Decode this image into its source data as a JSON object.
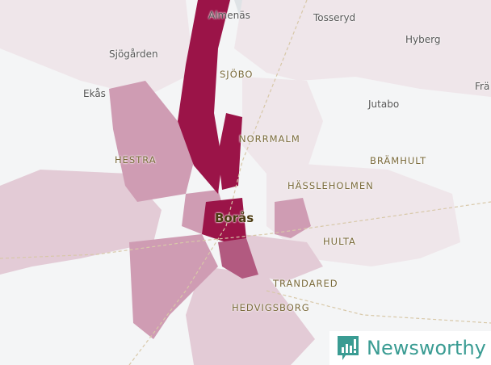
{
  "map": {
    "place_labels": [
      "Almenäs",
      "Tosseryd",
      "Hyberg",
      "Sjögården",
      "Frä",
      "Ekås",
      "Jutabo"
    ],
    "district_labels": [
      "SJÖBO",
      "NORRMALM",
      "HESTRA",
      "BRÄMHULT",
      "HÄSSLEHOLMEN",
      "HULTA",
      "TRANDARED",
      "HEDVIGSBORG"
    ],
    "city_label": "Borås",
    "colors": {
      "background": "#f4f5f6",
      "high": "#9b1448",
      "mid": "#c98aa5",
      "low": "#e6d3dc",
      "lowest": "#efe6ea"
    }
  },
  "brand": {
    "name": "Newsworthy",
    "color": "#3a9c93"
  }
}
